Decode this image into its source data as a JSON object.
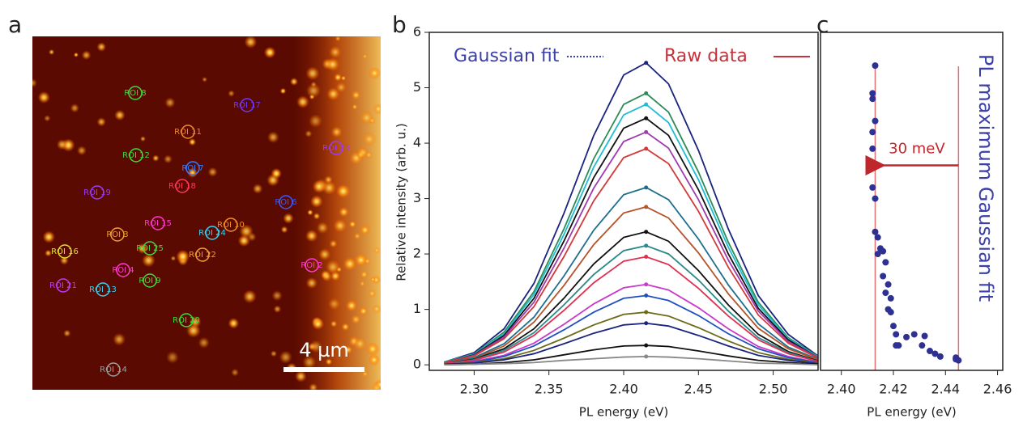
{
  "panel_labels": [
    "a",
    "b",
    "c"
  ],
  "image": {
    "scale_bar": "4 µm",
    "rois": [
      "ROI 8",
      "ROI 11",
      "ROI 12",
      "ROI 7",
      "ROI 18",
      "ROI 6",
      "ROI 19",
      "ROI 15",
      "ROI 3",
      "ROI 25",
      "ROI 24",
      "ROI 10",
      "ROI 16",
      "ROI 22",
      "ROI 4",
      "ROI 9",
      "ROI 2",
      "ROI 13",
      "ROI 21",
      "ROI 20",
      "ROI 14",
      "ROI 17",
      "ROI 23"
    ],
    "roi_colors": [
      "#3ddc3d",
      "#f08a2c",
      "#3ddc3d",
      "#3a7bff",
      "#ff3a5a",
      "#3a5bff",
      "#9a3aff",
      "#ff3ad0",
      "#f0a030",
      "#3ddc3d",
      "#3ad0f0",
      "#f09030",
      "#e0e030",
      "#f0a030",
      "#ff3ad0",
      "#3ddc3d",
      "#ff3ad0",
      "#3ad0f0",
      "#c03aff",
      "#3ddc3d",
      "#9aa0a0",
      "#6a3aff",
      "#9a3aff"
    ]
  },
  "chart_data": [
    {
      "type": "line",
      "xlabel": "PL energy (eV)",
      "ylabel": "Relative intensity (arb. u.)",
      "fit_label": "Gaussian fit",
      "fit_color": "#3b3fa8",
      "raw_label": "Raw data",
      "raw_color": "#c8323c",
      "x": [
        2.28,
        2.3,
        2.32,
        2.34,
        2.36,
        2.38,
        2.4,
        2.415,
        2.43,
        2.45,
        2.47,
        2.49,
        2.51,
        2.53
      ],
      "xlim": [
        2.27,
        2.53
      ],
      "xticks": [
        {
          "value": 2.3,
          "label": "2.30"
        },
        2.35,
        {
          "value": 2.4,
          "label": "2.40"
        },
        2.45,
        {
          "value": 2.5,
          "label": "2.50"
        }
      ],
      "ylim": [
        -0.1,
        6
      ],
      "yticks": [
        0,
        1,
        2,
        3,
        4,
        5,
        6
      ],
      "series": [
        {
          "color": "#1a237e",
          "values": [
            0.05,
            0.22,
            0.65,
            1.47,
            2.73,
            4.14,
            5.23,
            5.45,
            5.07,
            3.87,
            2.45,
            1.25,
            0.55,
            0.16
          ]
        },
        {
          "color": "#2e8b57",
          "values": [
            0.05,
            0.2,
            0.59,
            1.32,
            2.45,
            3.72,
            4.7,
            4.9,
            4.56,
            3.48,
            2.21,
            1.13,
            0.49,
            0.15
          ]
        },
        {
          "color": "#1fbcd4",
          "values": [
            0.05,
            0.19,
            0.56,
            1.27,
            2.35,
            3.57,
            4.51,
            4.7,
            4.37,
            3.34,
            2.12,
            1.08,
            0.47,
            0.14
          ]
        },
        {
          "color": "#111111",
          "values": [
            0.04,
            0.18,
            0.53,
            1.2,
            2.23,
            3.38,
            4.27,
            4.45,
            4.14,
            3.16,
            2.0,
            1.02,
            0.45,
            0.13
          ]
        },
        {
          "color": "#a03ab0",
          "values": [
            0.04,
            0.17,
            0.5,
            1.13,
            2.1,
            3.19,
            4.03,
            4.2,
            3.91,
            2.98,
            1.89,
            0.97,
            0.42,
            0.13
          ]
        },
        {
          "color": "#d23a3a",
          "values": [
            0.04,
            0.16,
            0.47,
            1.05,
            1.95,
            2.96,
            3.74,
            3.9,
            3.63,
            2.77,
            1.76,
            0.9,
            0.39,
            0.12
          ]
        },
        {
          "color": "#1e6f8f",
          "values": [
            0.03,
            0.13,
            0.38,
            0.86,
            1.6,
            2.43,
            3.07,
            3.2,
            2.98,
            2.27,
            1.44,
            0.74,
            0.32,
            0.1
          ]
        },
        {
          "color": "#b5532a",
          "values": [
            0.03,
            0.11,
            0.34,
            0.77,
            1.43,
            2.17,
            2.74,
            2.85,
            2.65,
            2.02,
            1.28,
            0.66,
            0.29,
            0.09
          ]
        },
        {
          "color": "#111111",
          "values": [
            0.02,
            0.1,
            0.29,
            0.65,
            1.2,
            1.82,
            2.3,
            2.4,
            2.23,
            1.7,
            1.08,
            0.55,
            0.24,
            0.07
          ]
        },
        {
          "color": "#2a8a8a",
          "values": [
            0.02,
            0.09,
            0.26,
            0.58,
            1.08,
            1.63,
            2.06,
            2.15,
            2.0,
            1.53,
            0.97,
            0.49,
            0.22,
            0.06
          ]
        },
        {
          "color": "#e03050",
          "values": [
            0.02,
            0.08,
            0.23,
            0.53,
            0.98,
            1.48,
            1.87,
            1.95,
            1.81,
            1.38,
            0.88,
            0.45,
            0.2,
            0.06
          ]
        },
        {
          "color": "#c83ac8",
          "values": [
            0.01,
            0.06,
            0.17,
            0.39,
            0.73,
            1.1,
            1.39,
            1.45,
            1.35,
            1.03,
            0.65,
            0.33,
            0.15,
            0.04
          ]
        },
        {
          "color": "#2050c0",
          "values": [
            0.01,
            0.05,
            0.15,
            0.34,
            0.63,
            0.95,
            1.2,
            1.25,
            1.16,
            0.89,
            0.56,
            0.29,
            0.13,
            0.04
          ]
        },
        {
          "color": "#6b6b1a",
          "values": [
            0.01,
            0.04,
            0.11,
            0.26,
            0.48,
            0.72,
            0.91,
            0.95,
            0.88,
            0.67,
            0.43,
            0.22,
            0.1,
            0.03
          ]
        },
        {
          "color": "#1a237e",
          "values": [
            0.01,
            0.03,
            0.09,
            0.2,
            0.38,
            0.57,
            0.72,
            0.75,
            0.7,
            0.53,
            0.34,
            0.17,
            0.08,
            0.02
          ]
        },
        {
          "color": "#111111",
          "values": [
            0,
            0.01,
            0.04,
            0.09,
            0.18,
            0.27,
            0.34,
            0.35,
            0.33,
            0.25,
            0.16,
            0.08,
            0.04,
            0.01
          ]
        },
        {
          "color": "#888888",
          "values": [
            0,
            0.01,
            0.02,
            0.04,
            0.08,
            0.11,
            0.14,
            0.15,
            0.14,
            0.11,
            0.07,
            0.03,
            0.02,
            0
          ]
        }
      ]
    },
    {
      "type": "scatter",
      "xlabel": "PL energy (eV)",
      "ylabel": "PL maximum Gaussian fit",
      "color": "#2e3192",
      "ylabel_color": "#3b3fa8",
      "xlim": [
        2.392,
        2.462
      ],
      "xticks": [
        {
          "value": 2.4,
          "label": "2.40"
        },
        2.42,
        2.44,
        2.46
      ],
      "ylim": [
        -0.1,
        6
      ],
      "vlines": [
        2.413,
        2.445
      ],
      "vline_color": "#e07070",
      "arrow": {
        "label": "30 meV",
        "from": 2.445,
        "to": 2.413,
        "y": 3.6,
        "color": "#c0272d"
      },
      "x": [
        2.413,
        2.412,
        2.412,
        2.413,
        2.412,
        2.412,
        2.412,
        2.413,
        2.413,
        2.414,
        2.415,
        2.416,
        2.414,
        2.417,
        2.416,
        2.418,
        2.417,
        2.419,
        2.418,
        2.419,
        2.42,
        2.421,
        2.421,
        2.422,
        2.425,
        2.428,
        2.432,
        2.431,
        2.434,
        2.436,
        2.438,
        2.444,
        2.445,
        2.444
      ],
      "y": [
        5.4,
        4.9,
        4.8,
        4.4,
        4.2,
        3.9,
        3.2,
        3.0,
        2.4,
        2.3,
        2.1,
        2.05,
        2.0,
        1.85,
        1.6,
        1.45,
        1.3,
        1.2,
        1.0,
        0.95,
        0.7,
        0.55,
        0.35,
        0.35,
        0.5,
        0.55,
        0.52,
        0.35,
        0.25,
        0.2,
        0.15,
        0.13,
        0.08,
        0.1
      ]
    }
  ]
}
